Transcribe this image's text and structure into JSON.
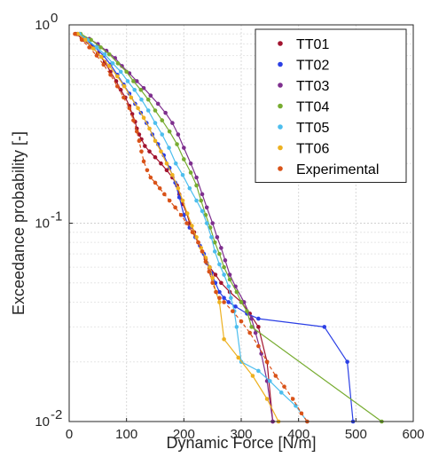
{
  "chart_data": {
    "type": "line",
    "x_scale": "linear",
    "y_scale": "log",
    "xlim": [
      0,
      600
    ],
    "ylim": [
      0.01,
      1
    ],
    "x_ticks": [
      "0",
      "100",
      "200",
      "300",
      "400",
      "500",
      "600"
    ],
    "y_ticks": [
      {
        "base": "10",
        "exp": "0",
        "value": 1
      },
      {
        "base": "10",
        "exp": "-1",
        "value": 0.1
      },
      {
        "base": "10",
        "exp": "-2",
        "value": 0.01
      }
    ],
    "xlabel": "Dynamic Force [N/m]",
    "ylabel": "Exceedance probability [-]",
    "grid": true,
    "legend_position": "top-right",
    "series": [
      {
        "name": "TT01",
        "color": "#A2142F",
        "dashed": false,
        "x": [
          12,
          25,
          38,
          50,
          62,
          72,
          82,
          90,
          98,
          105,
          110,
          115,
          118,
          122,
          126,
          132,
          140,
          150,
          160,
          170,
          180,
          188,
          192,
          198,
          205,
          210,
          218,
          225,
          232,
          238,
          245,
          255,
          265,
          280,
          300,
          315,
          330,
          345,
          355
        ],
        "y": [
          0.9,
          0.84,
          0.78,
          0.72,
          0.65,
          0.58,
          0.52,
          0.47,
          0.43,
          0.39,
          0.355,
          0.325,
          0.3,
          0.28,
          0.265,
          0.245,
          0.23,
          0.215,
          0.2,
          0.185,
          0.17,
          0.155,
          0.14,
          0.125,
          0.112,
          0.1,
          0.09,
          0.08,
          0.072,
          0.066,
          0.06,
          0.055,
          0.05,
          0.045,
          0.04,
          0.035,
          0.03,
          0.02,
          0.01
        ]
      },
      {
        "name": "TT02",
        "color": "#2B3FE5",
        "dashed": false,
        "x": [
          15,
          30,
          45,
          60,
          72,
          84,
          95,
          105,
          115,
          125,
          135,
          145,
          155,
          165,
          175,
          185,
          192,
          200,
          210,
          220,
          228,
          235,
          240,
          248,
          255,
          262,
          270,
          278,
          290,
          310,
          330,
          445,
          485,
          495
        ],
        "y": [
          0.9,
          0.84,
          0.77,
          0.7,
          0.63,
          0.56,
          0.5,
          0.45,
          0.4,
          0.36,
          0.32,
          0.28,
          0.25,
          0.22,
          0.19,
          0.16,
          0.135,
          0.11,
          0.095,
          0.085,
          0.077,
          0.07,
          0.063,
          0.056,
          0.05,
          0.045,
          0.042,
          0.04,
          0.038,
          0.035,
          0.033,
          0.03,
          0.02,
          0.01
        ]
      },
      {
        "name": "TT03",
        "color": "#7E2F8E",
        "dashed": false,
        "x": [
          18,
          35,
          50,
          65,
          80,
          92,
          105,
          118,
          130,
          142,
          155,
          168,
          180,
          190,
          200,
          212,
          222,
          232,
          240,
          250,
          258,
          265,
          272,
          280,
          290,
          305,
          318,
          325,
          335,
          345,
          355
        ],
        "y": [
          0.9,
          0.85,
          0.8,
          0.74,
          0.68,
          0.62,
          0.57,
          0.52,
          0.48,
          0.44,
          0.4,
          0.36,
          0.32,
          0.28,
          0.24,
          0.2,
          0.17,
          0.14,
          0.12,
          0.1,
          0.085,
          0.075,
          0.065,
          0.055,
          0.048,
          0.04,
          0.033,
          0.028,
          0.022,
          0.016,
          0.01
        ]
      },
      {
        "name": "TT04",
        "color": "#77AC30",
        "dashed": false,
        "x": [
          20,
          38,
          55,
          70,
          85,
          100,
          112,
          125,
          138,
          150,
          162,
          175,
          188,
          200,
          212,
          222,
          230,
          238,
          246,
          254,
          262,
          270,
          280,
          292,
          300,
          310,
          318,
          545
        ],
        "y": [
          0.9,
          0.84,
          0.77,
          0.71,
          0.64,
          0.58,
          0.52,
          0.47,
          0.42,
          0.37,
          0.33,
          0.29,
          0.25,
          0.21,
          0.18,
          0.155,
          0.13,
          0.11,
          0.095,
          0.08,
          0.07,
          0.06,
          0.052,
          0.045,
          0.04,
          0.036,
          0.03,
          0.01
        ]
      },
      {
        "name": "TT05",
        "color": "#4DBEEE",
        "dashed": false,
        "x": [
          18,
          32,
          48,
          62,
          76,
          90,
          102,
          114,
          126,
          138,
          150,
          162,
          174,
          186,
          198,
          210,
          222,
          232,
          240,
          248,
          254,
          262,
          270,
          278,
          282,
          288,
          292,
          300,
          330,
          350,
          370,
          395,
          415
        ],
        "y": [
          0.9,
          0.84,
          0.77,
          0.71,
          0.64,
          0.58,
          0.52,
          0.47,
          0.42,
          0.37,
          0.32,
          0.28,
          0.24,
          0.2,
          0.175,
          0.15,
          0.13,
          0.115,
          0.1,
          0.085,
          0.072,
          0.062,
          0.055,
          0.048,
          0.042,
          0.036,
          0.03,
          0.02,
          0.018,
          0.016,
          0.014,
          0.012,
          0.01
        ]
      },
      {
        "name": "TT06",
        "color": "#EDB120",
        "dashed": false,
        "x": [
          15,
          28,
          42,
          56,
          70,
          84,
          96,
          108,
          120,
          130,
          140,
          150,
          160,
          170,
          180,
          190,
          198,
          206,
          214,
          222,
          230,
          238,
          245,
          250,
          256,
          262,
          270,
          295,
          320,
          345,
          365
        ],
        "y": [
          0.9,
          0.84,
          0.76,
          0.69,
          0.62,
          0.55,
          0.49,
          0.43,
          0.38,
          0.34,
          0.3,
          0.26,
          0.23,
          0.2,
          0.175,
          0.15,
          0.13,
          0.112,
          0.097,
          0.085,
          0.075,
          0.067,
          0.06,
          0.053,
          0.045,
          0.04,
          0.026,
          0.021,
          0.017,
          0.013,
          0.01
        ]
      },
      {
        "name": "Experimental",
        "color": "#D95319",
        "dashed": true,
        "x": [
          10,
          22,
          35,
          48,
          60,
          72,
          84,
          95,
          105,
          112,
          118,
          122,
          126,
          130,
          136,
          142,
          150,
          158,
          166,
          175,
          185,
          195,
          205,
          215,
          225,
          232,
          238,
          244,
          250,
          256,
          262,
          270,
          285,
          300,
          315,
          330,
          345,
          360,
          375,
          390,
          405,
          415
        ],
        "y": [
          0.9,
          0.84,
          0.77,
          0.7,
          0.63,
          0.56,
          0.49,
          0.43,
          0.38,
          0.33,
          0.29,
          0.26,
          0.23,
          0.205,
          0.185,
          0.17,
          0.16,
          0.15,
          0.14,
          0.13,
          0.12,
          0.11,
          0.1,
          0.09,
          0.08,
          0.072,
          0.064,
          0.057,
          0.05,
          0.045,
          0.042,
          0.04,
          0.036,
          0.032,
          0.028,
          0.024,
          0.02,
          0.017,
          0.015,
          0.013,
          0.011,
          0.01
        ]
      }
    ]
  }
}
